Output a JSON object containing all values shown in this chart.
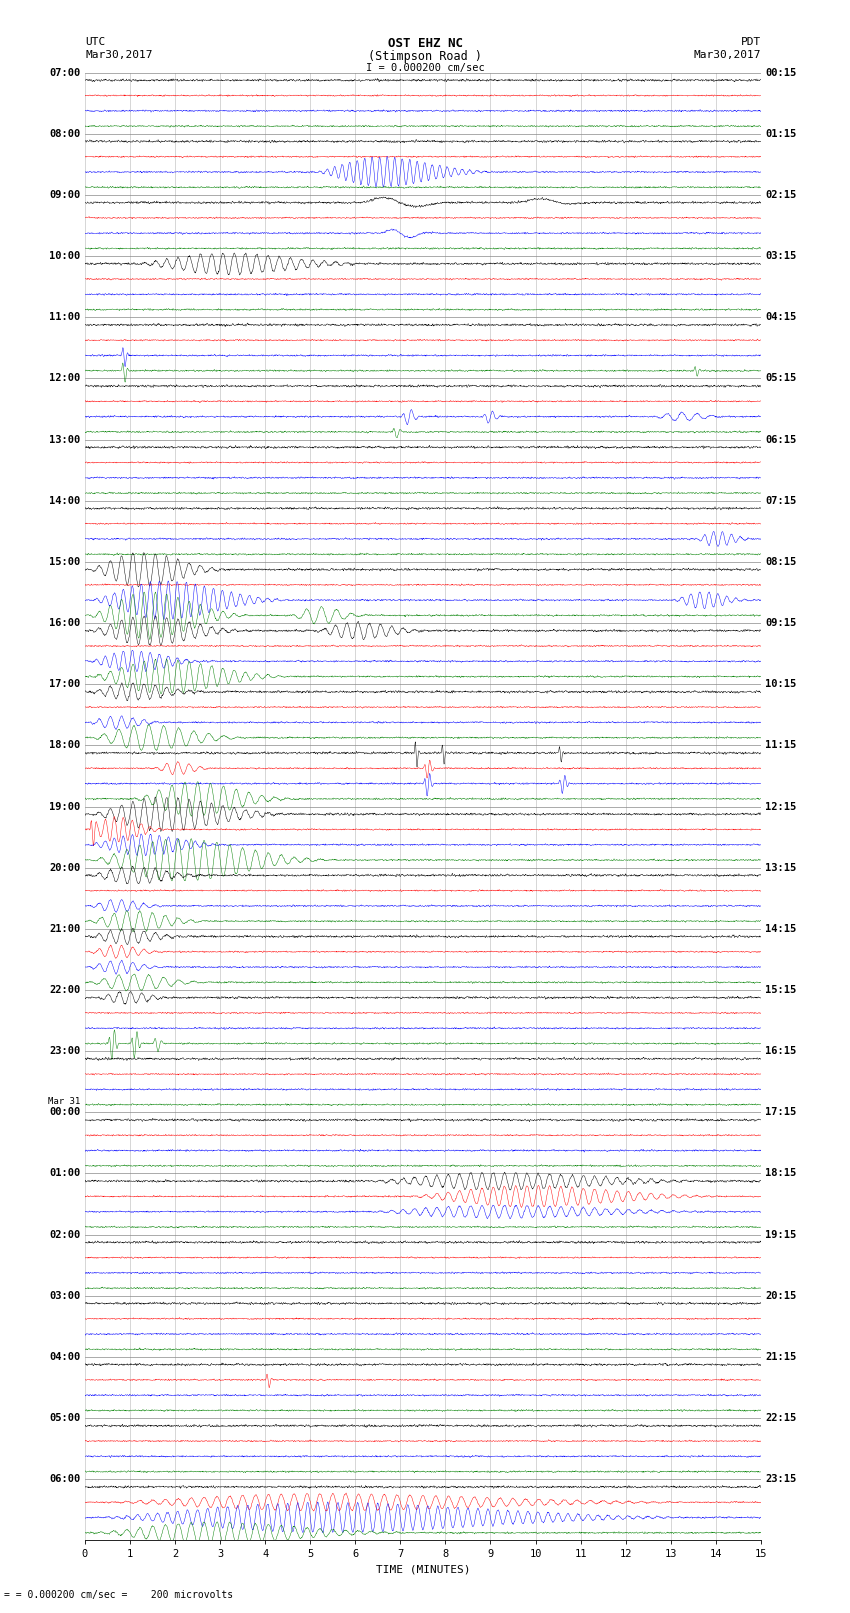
{
  "title_line1": "OST EHZ NC",
  "title_line2": "(Stimpson Road )",
  "scale_label": "I = 0.000200 cm/sec",
  "left_label_top": "UTC",
  "left_label_date": "Mar30,2017",
  "right_label_top": "PDT",
  "right_label_date": "Mar30,2017",
  "bottom_label": "TIME (MINUTES)",
  "bottom_note": "= 0.000200 cm/sec =    200 microvolts",
  "bg_color": "#ffffff",
  "trace_colors": [
    "black",
    "red",
    "blue",
    "green"
  ],
  "n_rows": 96,
  "fig_width": 8.5,
  "fig_height": 16.13,
  "dpi": 100,
  "utc_hour_labels": [
    "07:00",
    "08:00",
    "09:00",
    "10:00",
    "11:00",
    "12:00",
    "13:00",
    "14:00",
    "15:00",
    "16:00",
    "17:00",
    "18:00",
    "19:00",
    "20:00",
    "21:00",
    "22:00",
    "23:00",
    "00:00",
    "01:00",
    "02:00",
    "03:00",
    "04:00",
    "05:00",
    "06:00"
  ],
  "pdt_hour_labels": [
    "00:15",
    "01:15",
    "02:15",
    "03:15",
    "04:15",
    "05:15",
    "06:15",
    "07:15",
    "08:15",
    "09:15",
    "10:15",
    "11:15",
    "12:15",
    "13:15",
    "14:15",
    "15:15",
    "16:15",
    "17:15",
    "18:15",
    "19:15",
    "20:15",
    "21:15",
    "22:15",
    "23:15"
  ],
  "mar31_label": "Mar 31",
  "mar31_row": 68
}
